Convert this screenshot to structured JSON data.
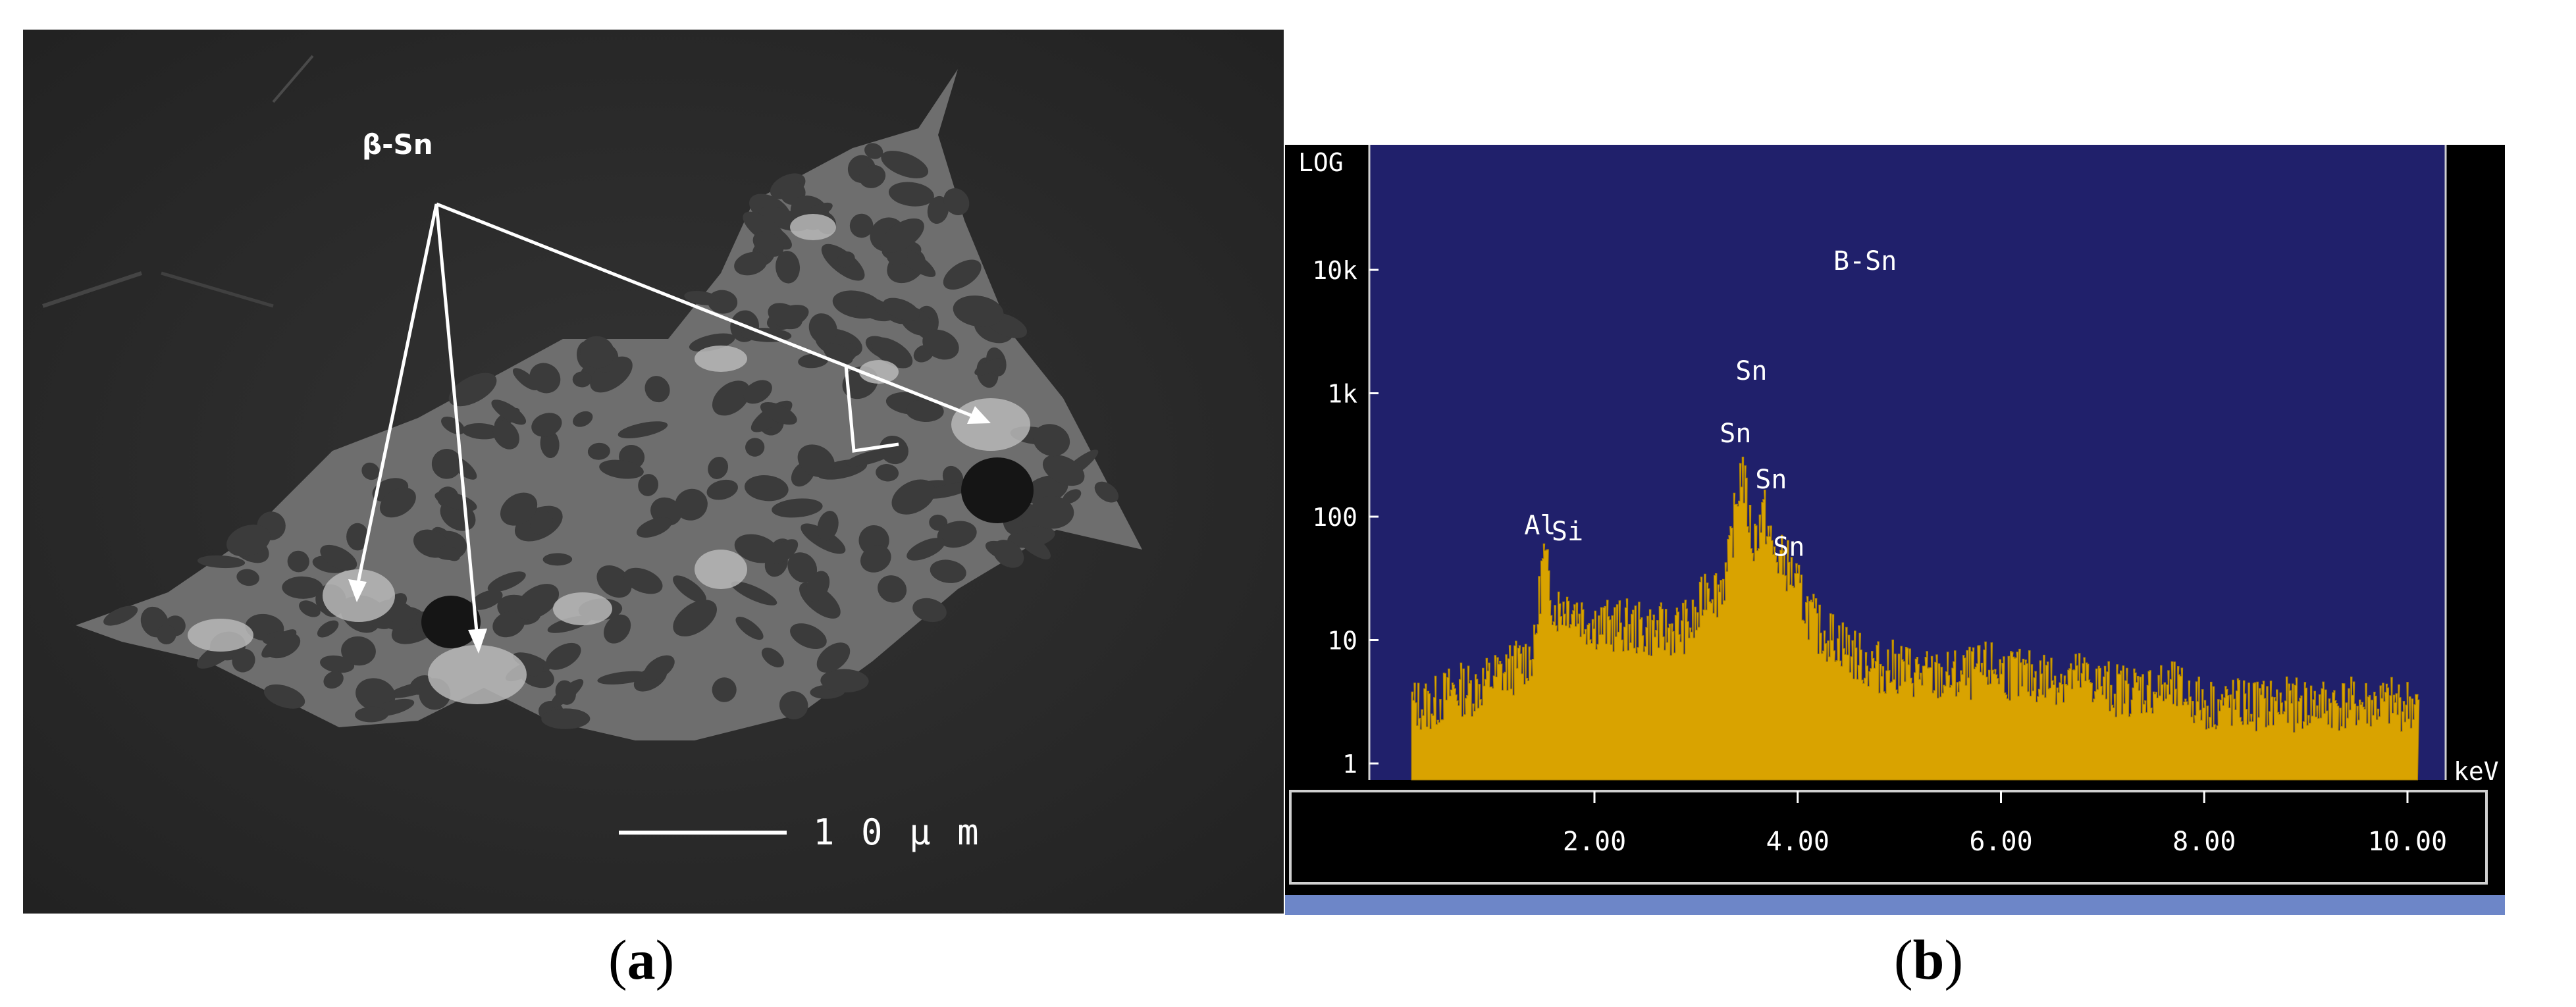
{
  "figure": {
    "panels": [
      {
        "label": "a",
        "annotation": "β-Sn",
        "scale_bar": "1 0 μ m"
      },
      {
        "label": "b",
        "chart_data": {
          "type": "area",
          "title": "B-Sn",
          "y_scale": "log",
          "y_axis_title": "LOG",
          "y_ticks": [
            "1",
            "10",
            "100",
            "1k",
            "10k"
          ],
          "y_tick_values": [
            1,
            10,
            100,
            1000,
            10000
          ],
          "x_unit": "keV",
          "x_ticks": [
            "2.00",
            "4.00",
            "6.00",
            "8.00",
            "10.00"
          ],
          "x_tick_values": [
            2,
            4,
            6,
            8,
            10
          ],
          "xlim": [
            0,
            10.3
          ],
          "ylim": [
            1,
            30000
          ],
          "peak_labels": [
            {
              "text": "Al",
              "x": 1.49,
              "y": 50
            },
            {
              "text": "Si",
              "x": 1.74,
              "y": 20
            },
            {
              "text": "Sn",
              "x": 3.44,
              "y": 260
            },
            {
              "text": "Sn",
              "x": 3.66,
              "y": 110
            },
            {
              "text": "Sn",
              "x": 3.9,
              "y": 40
            },
            {
              "text": "Sn",
              "x": 3.44,
              "y": 260
            }
          ],
          "spectrum": {
            "x": [
              0.2,
              0.4,
              0.6,
              0.8,
              1.0,
              1.2,
              1.4,
              1.49,
              1.6,
              1.74,
              1.9,
              2.1,
              2.3,
              2.5,
              2.7,
              2.9,
              3.0,
              3.1,
              3.2,
              3.3,
              3.44,
              3.55,
              3.66,
              3.75,
              3.9,
              4.05,
              4.2,
              4.4,
              4.6,
              4.8,
              5.0,
              5.3,
              5.6,
              5.9,
              6.2,
              6.5,
              6.8,
              7.1,
              7.4,
              7.7,
              8.0,
              8.3,
              8.6,
              8.9,
              9.2,
              9.5,
              9.8,
              10.1
            ],
            "y": [
              3,
              3,
              4,
              4,
              5,
              6,
              8,
              50,
              18,
              20,
              15,
              13,
              13,
              12,
              12,
              13,
              14,
              30,
              25,
              35,
              260,
              60,
              110,
              50,
              40,
              20,
              12,
              10,
              7,
              6,
              6,
              5,
              5,
              6,
              5,
              5,
              5,
              4,
              4,
              4,
              3,
              3,
              3,
              3,
              3,
              3,
              3,
              3
            ]
          }
        }
      }
    ]
  }
}
